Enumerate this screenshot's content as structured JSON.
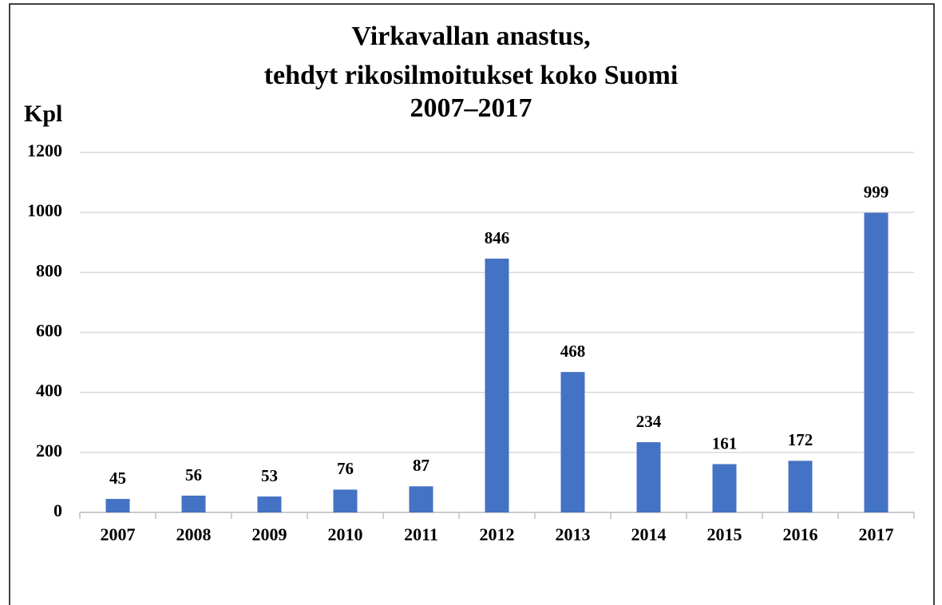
{
  "chart_data": {
    "type": "bar",
    "title": [
      "Virkavallan anastus,",
      "tehdyt rikosilmoitukset koko Suomi",
      "2007–2017"
    ],
    "y_label": "Kpl",
    "categories": [
      "2007",
      "2008",
      "2009",
      "2010",
      "2011",
      "2012",
      "2013",
      "2014",
      "2015",
      "2016",
      "2017"
    ],
    "values": [
      45,
      56,
      53,
      76,
      87,
      846,
      468,
      234,
      161,
      172,
      999
    ],
    "color": "#4472c4",
    "ylim": [
      0,
      1200
    ],
    "yticks": [
      0,
      200,
      400,
      600,
      800,
      1000,
      1200
    ],
    "grid": true
  }
}
